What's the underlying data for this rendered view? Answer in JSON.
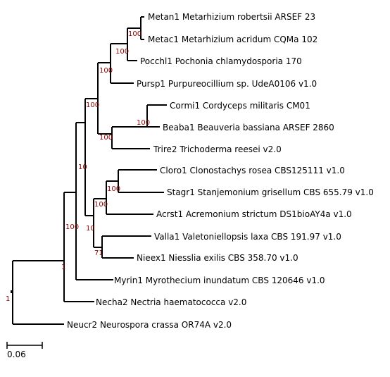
{
  "colors": {
    "branch": "#000000",
    "support": "#8b0000",
    "text": "#000000"
  },
  "leaves": [
    "Metan1 Metarhizium robertsii ARSEF 23",
    "Metac1 Metarhizium acridum CQMa 102",
    "Pocchl1 Pochonia chlamydosporia 170",
    "Pursp1 Purpureocillium sp. UdeA0106 v1.0",
    "Cormi1 Cordyceps militaris CM01",
    "Beaba1 Beauveria bassiana ARSEF 2860",
    "Trire2 Trichoderma reesei v2.0",
    "Cloro1 Clonostachys rosea CBS125111 v1.0",
    "Stagr1 Stanjemonium grisellum CBS 655.79 v1.0",
    "Acrst1 Acremonium strictum DS1bioAY4a v1.0",
    "Valla1 Valetoniellopsis laxa CBS 191.97 v1.0",
    "Nieex1 Niesslia exilis CBS 358.70 v1.0",
    "Myrin1 Myrothecium inundatum CBS 120646 v1.0",
    "Necha2 Nectria haematococca v2.0",
    "Neucr2 Neurospora crassa OR74A v2.0"
  ],
  "supports": [
    "100",
    "100",
    "100",
    "100",
    "100",
    "100",
    "10",
    "100",
    "100",
    "10",
    "71",
    "100",
    "1",
    "1"
  ],
  "scale_bar": {
    "label": "0.06"
  }
}
